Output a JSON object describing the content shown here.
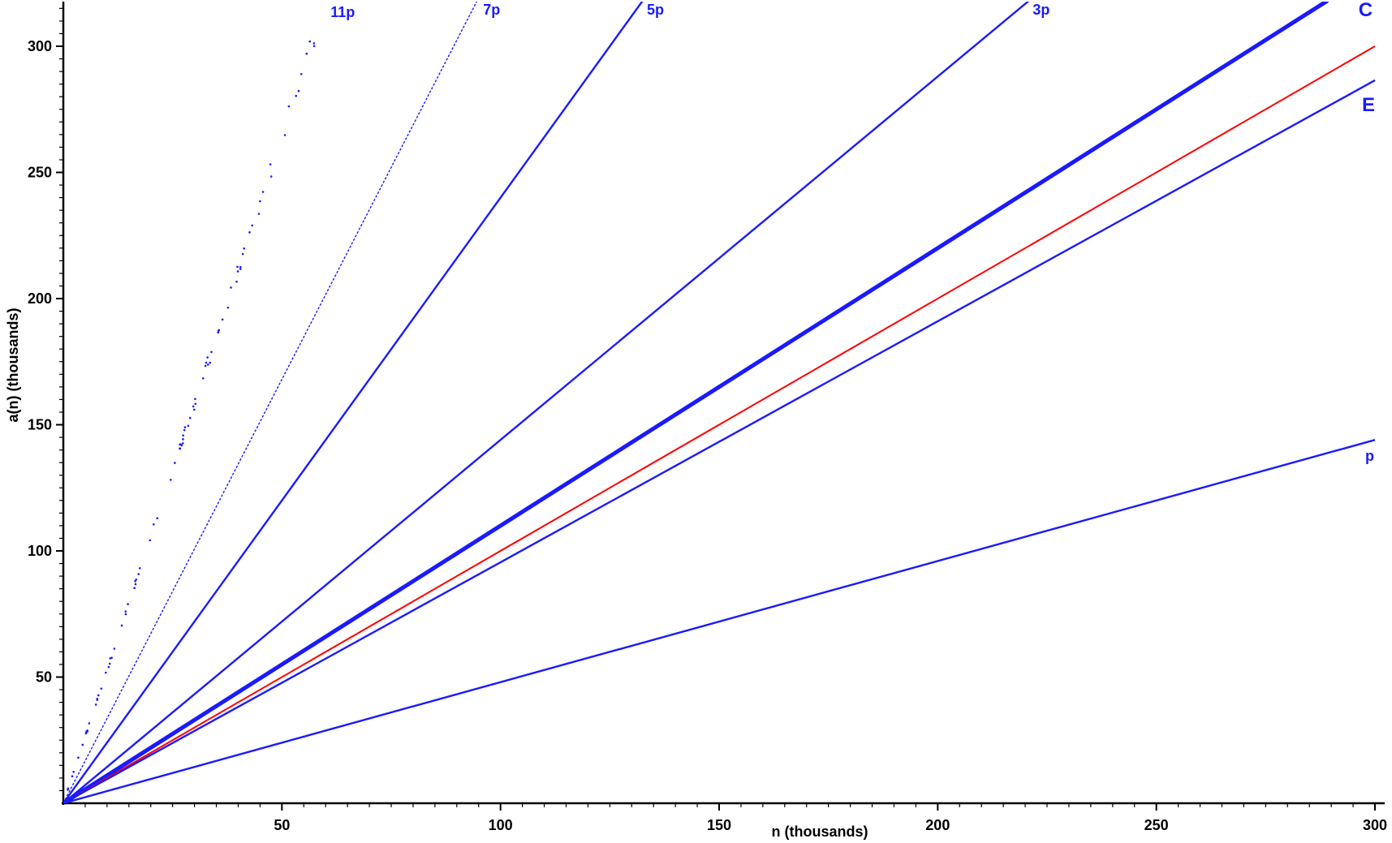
{
  "chart_data": {
    "type": "scatter",
    "title": "",
    "xlabel": "n (thousands)",
    "ylabel": "a(n) (thousands)",
    "xlim": [
      0,
      300
    ],
    "ylim": [
      0,
      318
    ],
    "x_ticks": [
      50,
      100,
      150,
      200,
      250,
      300
    ],
    "y_ticks": [
      50,
      100,
      150,
      200,
      250,
      300
    ],
    "grid": false,
    "series": [
      {
        "name": "11p",
        "color": "#1a1aff",
        "slope": 5.28,
        "x_end": 60,
        "style": "sparse-dots"
      },
      {
        "name": "7p",
        "color": "#1a1aff",
        "slope": 3.36,
        "x_end": 95,
        "style": "dots"
      },
      {
        "name": "5p",
        "color": "#1a1aff",
        "slope": 2.4,
        "x_end": 133,
        "style": "line"
      },
      {
        "name": "3p",
        "color": "#1a1aff",
        "slope": 1.44,
        "x_end": 221,
        "style": "line"
      },
      {
        "name": "C",
        "color": "#1a1aff",
        "slope": 1.1,
        "x_end": 289,
        "style": "thick-band"
      },
      {
        "name": "",
        "color": "#ff0000",
        "slope": 1.0,
        "x_end": 300,
        "style": "reference-line"
      },
      {
        "name": "E",
        "color": "#1a1aff",
        "slope": 0.955,
        "x_end": 300,
        "style": "line"
      },
      {
        "name": "p",
        "color": "#1a1aff",
        "slope": 0.48,
        "x_end": 300,
        "style": "line"
      }
    ]
  }
}
